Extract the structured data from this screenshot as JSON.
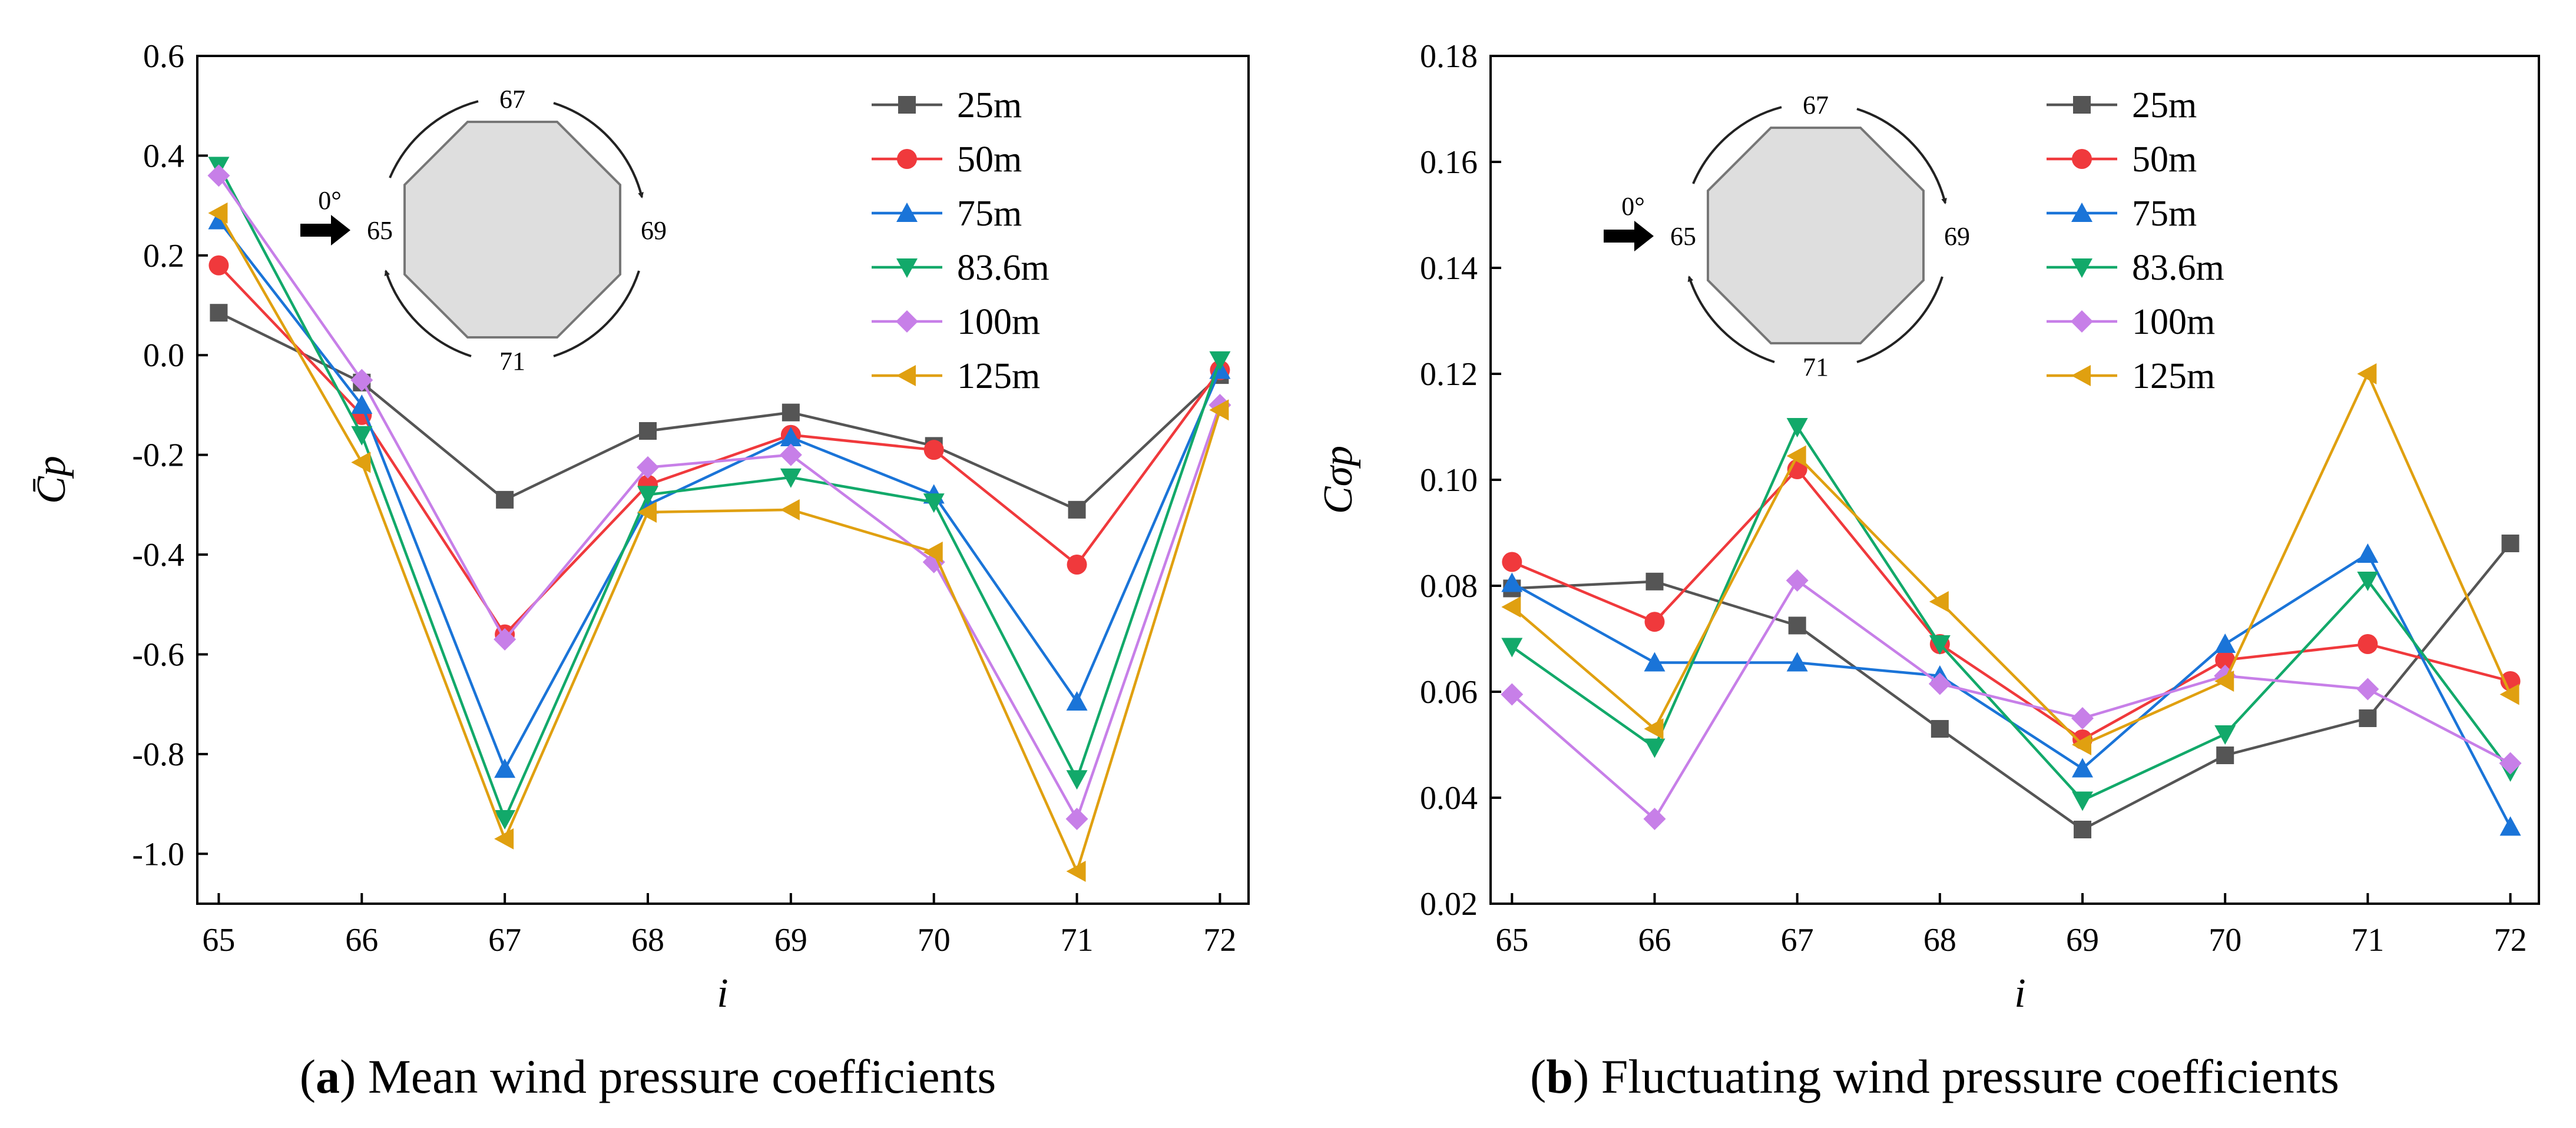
{
  "figure": {
    "panels": [
      "a",
      "b"
    ],
    "caption_a_letter": "a",
    "caption_a_text": "Mean wind pressure coefficients",
    "caption_b_letter": "b",
    "caption_b_text": "Fluctuating wind pressure coefficients"
  },
  "inset": {
    "labels": [
      "67",
      "69",
      "71",
      "65"
    ],
    "wind_angle": "0°"
  },
  "colors": {
    "25m": "#555555",
    "50m": "#f0393c",
    "75m": "#1a74d8",
    "83.6m": "#12a96a",
    "100m": "#c77fe8",
    "125m": "#e0a010"
  },
  "chart_data": [
    {
      "type": "line",
      "panel": "a",
      "title": "Mean wind pressure coefficients",
      "xlabel": "i",
      "ylabel": "C̄p",
      "x": [
        65,
        66,
        67,
        68,
        69,
        70,
        71,
        72
      ],
      "xlim": [
        64.85,
        72.2
      ],
      "ylim": [
        -1.1,
        0.6
      ],
      "yticks": [
        0.6,
        0.4,
        0.2,
        0.0,
        -0.2,
        -0.4,
        -0.6,
        -0.8,
        -1.0
      ],
      "ytick_labels": [
        "0.6",
        "0.4",
        "0.2",
        "0.0",
        "-0.2",
        "-0.4",
        "-0.6",
        "-0.8",
        "-1.0"
      ],
      "xtick_labels": [
        "65",
        "66",
        "67",
        "68",
        "69",
        "70",
        "71",
        "72"
      ],
      "legend_position": "top-right",
      "series": [
        {
          "name": "25m",
          "marker": "square",
          "values": [
            0.085,
            -0.055,
            -0.29,
            -0.152,
            -0.115,
            -0.182,
            -0.31,
            -0.04
          ]
        },
        {
          "name": "50m",
          "marker": "circle",
          "values": [
            0.18,
            -0.12,
            -0.56,
            -0.26,
            -0.16,
            -0.19,
            -0.42,
            -0.03
          ]
        },
        {
          "name": "75m",
          "marker": "triangle-up",
          "values": [
            0.27,
            -0.1,
            -0.83,
            -0.3,
            -0.165,
            -0.28,
            -0.695,
            -0.03
          ]
        },
        {
          "name": "83.6m",
          "marker": "triangle-down",
          "values": [
            0.38,
            -0.16,
            -0.93,
            -0.28,
            -0.245,
            -0.295,
            -0.85,
            -0.01
          ]
        },
        {
          "name": "100m",
          "marker": "diamond",
          "values": [
            0.36,
            -0.05,
            -0.57,
            -0.225,
            -0.2,
            -0.415,
            -0.93,
            -0.1
          ]
        },
        {
          "name": "125m",
          "marker": "triangle-left",
          "values": [
            0.285,
            -0.215,
            -0.97,
            -0.315,
            -0.31,
            -0.395,
            -1.035,
            -0.11
          ]
        }
      ]
    },
    {
      "type": "line",
      "panel": "b",
      "title": "Fluctuating wind pressure coefficients",
      "xlabel": "i",
      "ylabel": "Cσp",
      "x": [
        65,
        66,
        67,
        68,
        69,
        70,
        71,
        72
      ],
      "xlim": [
        64.85,
        72.2
      ],
      "ylim": [
        0.02,
        0.18
      ],
      "yticks": [
        0.18,
        0.16,
        0.14,
        0.12,
        0.1,
        0.08,
        0.06,
        0.04,
        0.02
      ],
      "ytick_labels": [
        "0.18",
        "0.16",
        "0.14",
        "0.12",
        "0.10",
        "0.08",
        "0.06",
        "0.04",
        "0.02"
      ],
      "xtick_labels": [
        "65",
        "66",
        "67",
        "68",
        "69",
        "70",
        "71",
        "72"
      ],
      "legend_position": "top-right",
      "series": [
        {
          "name": "25m",
          "marker": "square",
          "values": [
            0.0795,
            0.0808,
            0.0725,
            0.053,
            0.034,
            0.048,
            0.055,
            0.088
          ]
        },
        {
          "name": "50m",
          "marker": "circle",
          "values": [
            0.0845,
            0.0732,
            0.102,
            0.069,
            0.051,
            0.066,
            0.069,
            0.062
          ]
        },
        {
          "name": "75m",
          "marker": "triangle-up",
          "values": [
            0.0805,
            0.0655,
            0.0655,
            0.063,
            0.0455,
            0.069,
            0.086,
            0.0345
          ]
        },
        {
          "name": "83.6m",
          "marker": "triangle-down",
          "values": [
            0.0685,
            0.0495,
            0.11,
            0.069,
            0.0395,
            0.052,
            0.081,
            0.045
          ]
        },
        {
          "name": "100m",
          "marker": "diamond",
          "values": [
            0.0595,
            0.036,
            0.081,
            0.0615,
            0.055,
            0.063,
            0.0605,
            0.0465
          ]
        },
        {
          "name": "125m",
          "marker": "triangle-left",
          "values": [
            0.076,
            0.053,
            0.1045,
            0.077,
            0.05,
            0.062,
            0.12,
            0.0595
          ]
        }
      ]
    }
  ]
}
